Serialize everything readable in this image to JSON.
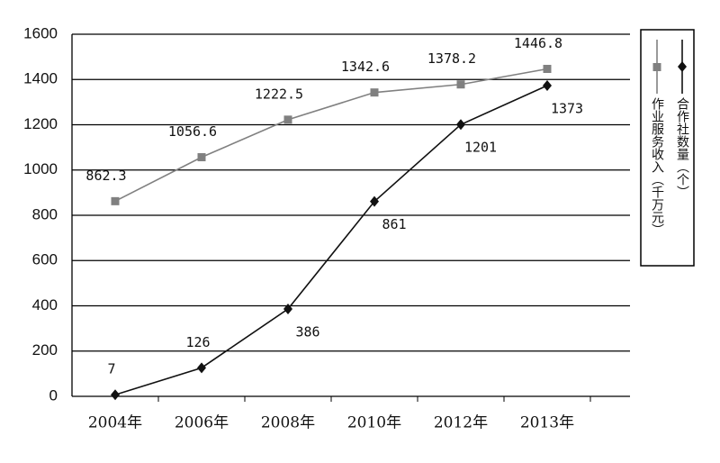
{
  "chart_data": {
    "type": "line",
    "categories": [
      "2004年",
      "2006年",
      "2008年",
      "2010年",
      "2012年",
      "2013年"
    ],
    "series": [
      {
        "name": "作业服务收入（千万元）",
        "color": "#808080",
        "marker": "square",
        "values": [
          862.3,
          1056.6,
          1222.5,
          1342.6,
          1378.2,
          1446.8
        ]
      },
      {
        "name": "合作社数量（个）",
        "color": "#111111",
        "marker": "diamond",
        "values": [
          7,
          126,
          386,
          861,
          1201,
          1373
        ]
      }
    ],
    "ylim": [
      0,
      1600
    ],
    "yticks": [
      0,
      200,
      400,
      600,
      800,
      1000,
      1200,
      1400,
      1600
    ],
    "grid": true
  }
}
